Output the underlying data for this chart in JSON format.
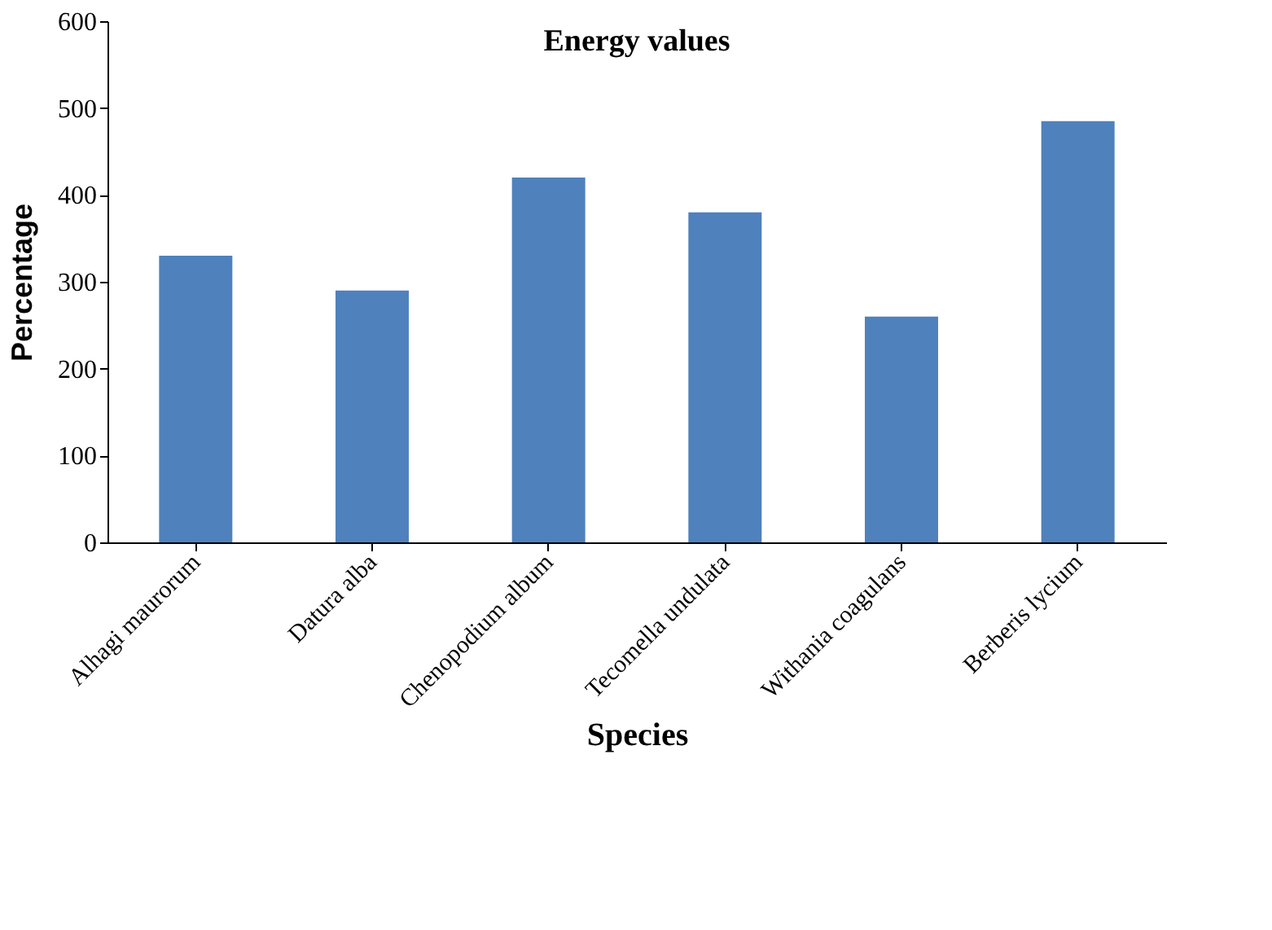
{
  "chart_data": {
    "type": "bar",
    "title": "Energy values",
    "xlabel": "Species",
    "ylabel": "Percentage",
    "categories": [
      "Alhagi maurorum",
      "Datura alba",
      "Chenopodium album",
      "Tecomella undulata",
      "Withania coagulans",
      "Berberis lycium"
    ],
    "values": [
      330,
      290,
      420,
      380,
      260,
      485
    ],
    "color": "#4f81bd",
    "ylim": [
      0,
      600
    ],
    "yticks": [
      0,
      100,
      200,
      300,
      400,
      500,
      600
    ],
    "grid": false
  }
}
